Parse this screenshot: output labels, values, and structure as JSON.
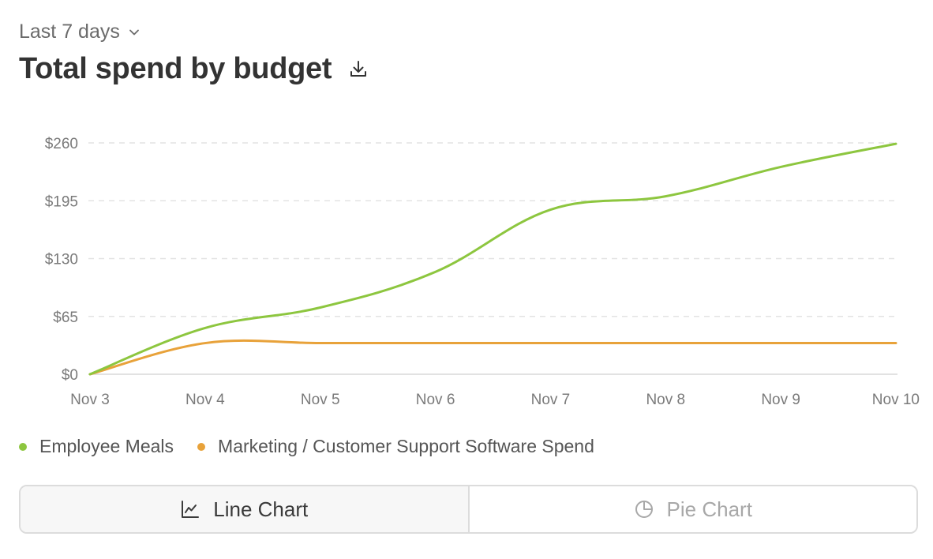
{
  "range_selector": {
    "label": "Last 7 days",
    "icon": "chevron-down-icon"
  },
  "header": {
    "title": "Total spend by budget",
    "download_icon": "download-icon"
  },
  "chart_data": {
    "type": "line",
    "title": "Total spend by budget",
    "x": [
      "Nov 3",
      "Nov 4",
      "Nov 5",
      "Nov 6",
      "Nov 7",
      "Nov 8",
      "Nov 9",
      "Nov 10"
    ],
    "y_ticks": [
      "$0",
      "$65",
      "$130",
      "$195",
      "$260"
    ],
    "ylim": [
      0,
      260
    ],
    "grid": true,
    "legend_placement": "bottom-left",
    "series": [
      {
        "name": "Employee Meals",
        "color": "#8dc63f",
        "values": [
          0,
          52,
          75,
          115,
          185,
          200,
          233,
          259
        ]
      },
      {
        "name": "Marketing / Customer Support Software Spend",
        "color": "#e8a23a",
        "values": [
          0,
          35,
          35,
          35,
          35,
          35,
          35,
          35
        ]
      }
    ]
  },
  "toggle": {
    "line_label": "Line Chart",
    "line_icon": "line-chart-icon",
    "pie_label": "Pie Chart",
    "pie_icon": "pie-chart-icon",
    "active": "line"
  }
}
